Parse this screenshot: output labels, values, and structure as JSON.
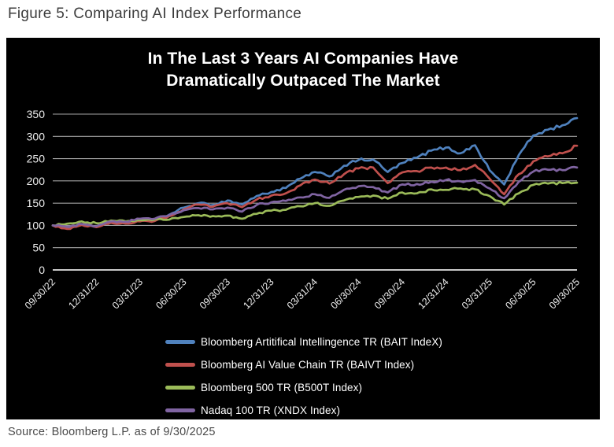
{
  "figure_caption": "Figure 5: Comparing AI Index Performance",
  "source": "Source: Bloomberg L.P. as of 9/30/2025",
  "chart_data": {
    "type": "line",
    "title_lines": [
      "In The Last 3 Years AI Companies Have",
      "Dramatically Outpaced The Market"
    ],
    "background_color": "#000000",
    "grid": "horizontal",
    "gridline_color": "#a3a3a3",
    "axis_line_color": "#e6e6e6",
    "tick_label_color": "#ececec",
    "legend_position": "bottom",
    "ylim": [
      0,
      350
    ],
    "y_ticks": [
      0,
      50,
      100,
      150,
      200,
      250,
      300,
      350
    ],
    "x_tick_labels": [
      "09/30/22",
      "12/31/22",
      "03/31/23",
      "06/30/23",
      "09/30/23",
      "12/31/23",
      "03/31/24",
      "06/30/24",
      "09/30/24",
      "12/31/24",
      "03/31/25",
      "06/30/25",
      "09/30/25"
    ],
    "months": [
      "2022-09",
      "2022-10",
      "2022-11",
      "2022-12",
      "2023-01",
      "2023-02",
      "2023-03",
      "2023-04",
      "2023-05",
      "2023-06",
      "2023-07",
      "2023-08",
      "2023-09",
      "2023-10",
      "2023-11",
      "2023-12",
      "2024-01",
      "2024-02",
      "2024-03",
      "2024-04",
      "2024-05",
      "2024-06",
      "2024-07",
      "2024-08",
      "2024-09",
      "2024-10",
      "2024-11",
      "2024-12",
      "2025-01",
      "2025-02",
      "2025-03",
      "2025-04",
      "2025-05",
      "2025-06",
      "2025-07",
      "2025-08",
      "2025-09"
    ],
    "base_value": 100,
    "series": [
      {
        "name": "Bloomberg Artitifical Intellingence TR (BAIT IndeX)",
        "color": "#4F81BD",
        "values": [
          100,
          94,
          103,
          97,
          108,
          106,
          112,
          112,
          124,
          140,
          150,
          146,
          156,
          147,
          166,
          175,
          184,
          205,
          220,
          210,
          234,
          247,
          248,
          220,
          240,
          252,
          268,
          275,
          262,
          280,
          224,
          192,
          258,
          302,
          315,
          325,
          341
        ]
      },
      {
        "name": "Bloomberg AI Value Chain TR (BAIVT Index)",
        "color": "#C0504D",
        "values": [
          100,
          92,
          101,
          96,
          106,
          104,
          109,
          110,
          121,
          136,
          147,
          142,
          150,
          141,
          158,
          167,
          172,
          190,
          203,
          194,
          215,
          228,
          230,
          195,
          219,
          222,
          230,
          230,
          224,
          236,
          205,
          170,
          215,
          244,
          255,
          262,
          279
        ]
      },
      {
        "name": "Bloomberg 500 TR (B500T Index)",
        "color": "#9BBB59",
        "values": [
          100,
          104,
          109,
          105,
          111,
          109,
          112,
          113,
          113,
          119,
          123,
          121,
          122,
          115,
          126,
          133,
          135,
          143,
          150,
          144,
          156,
          164,
          167,
          160,
          174,
          172,
          181,
          180,
          183,
          181,
          166,
          147,
          172,
          191,
          194,
          195,
          196
        ]
      },
      {
        "name": "Nadaq 100 TR (XNDX Index)",
        "color": "#8064A2",
        "values": [
          100,
          97,
          103,
          98,
          109,
          108,
          115,
          115,
          123,
          134,
          139,
          136,
          140,
          131,
          146,
          152,
          155,
          163,
          170,
          162,
          180,
          188,
          186,
          174,
          192,
          193,
          198,
          202,
          199,
          202,
          183,
          161,
          198,
          221,
          225,
          224,
          230
        ]
      }
    ]
  }
}
